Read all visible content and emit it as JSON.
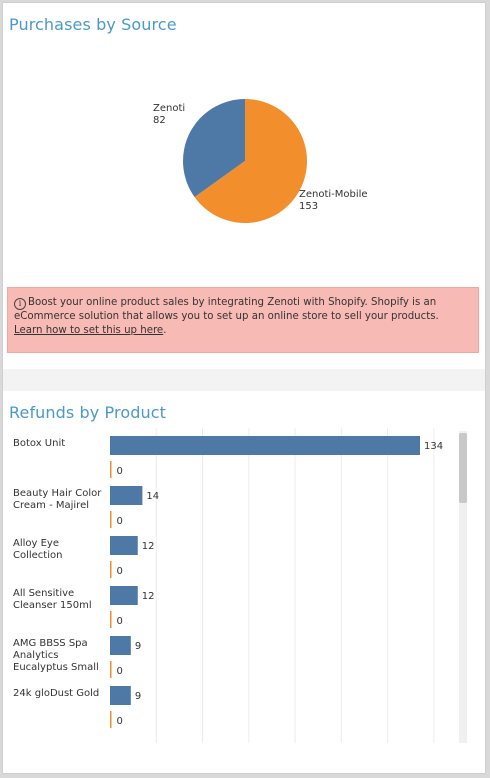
{
  "colors": {
    "title": "#4a9ac9",
    "blue": "#4e79a7",
    "orange": "#f28e2b",
    "banner_bg": "#f8bab4"
  },
  "purchases": {
    "title": "Purchases by Source"
  },
  "banner": {
    "icon": "info-icon",
    "icon_glyph": "i",
    "text": "Boost your online product sales by integrating Zenoti with Shopify. Shopify is an eCommerce solution that allows you to set up an online store to sell your products.",
    "link": "Learn how to set this up here",
    "trailing": "."
  },
  "refunds": {
    "title": "Refunds by Product"
  },
  "chart_data": [
    {
      "type": "pie",
      "title": "Purchases by Source",
      "slices": [
        {
          "label": "Zenoti",
          "value": 82,
          "color": "#4e79a7"
        },
        {
          "label": "Zenoti-Mobile",
          "value": 153,
          "color": "#f28e2b"
        }
      ]
    },
    {
      "type": "bar",
      "orientation": "horizontal",
      "title": "Refunds by Product",
      "xlim": [
        0,
        140
      ],
      "grid": true,
      "categories": [
        "Botox Unit",
        "Beauty Hair Color Cream - Majirel",
        "Alloy Eye Collection",
        "All Sensitive Cleanser 150ml",
        "AMG BBSS Spa Analytics Eucalyptus Small",
        "24k gloDust Gold"
      ],
      "series": [
        {
          "color": "#4e79a7",
          "values": [
            134,
            14,
            12,
            12,
            9,
            9
          ]
        },
        {
          "color": "#f28e2b",
          "values": [
            0,
            0,
            0,
            0,
            0,
            0
          ]
        }
      ]
    }
  ]
}
